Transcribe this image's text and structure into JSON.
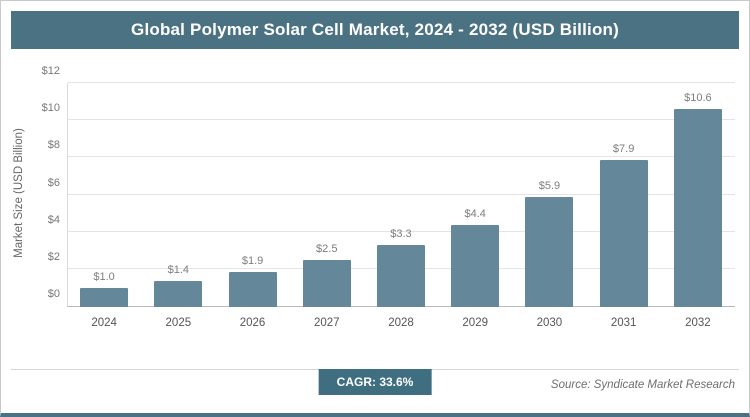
{
  "chart_data": {
    "type": "bar",
    "title": "Global Polymer Solar Cell Market, 2024 - 2032 (USD Billion)",
    "ylabel": "Market Size (USD Billion)",
    "xlabel": "",
    "categories": [
      "2024",
      "2025",
      "2026",
      "2027",
      "2028",
      "2029",
      "2030",
      "2031",
      "2032"
    ],
    "values": [
      1.0,
      1.4,
      1.9,
      2.5,
      3.3,
      4.4,
      5.9,
      7.9,
      10.6
    ],
    "value_labels": [
      "$1.0",
      "$1.4",
      "$1.9",
      "$2.5",
      "$3.3",
      "$4.4",
      "$5.9",
      "$7.9",
      "$10.6"
    ],
    "ylim": [
      0,
      12
    ],
    "ytick_values": [
      0,
      2,
      4,
      6,
      8,
      10,
      12
    ],
    "ytick_labels": [
      "$0",
      "$2",
      "$4",
      "$6",
      "$8",
      "$10",
      "$12"
    ],
    "grid": "horizontal",
    "legend_position": "none",
    "bar_color": "#65879a"
  },
  "header": {
    "background_color": "#4a7282",
    "text_color": "#ffffff"
  },
  "footer": {
    "cagr": "CAGR: 33.6%",
    "source": "Source: Syndicate Market Research"
  }
}
